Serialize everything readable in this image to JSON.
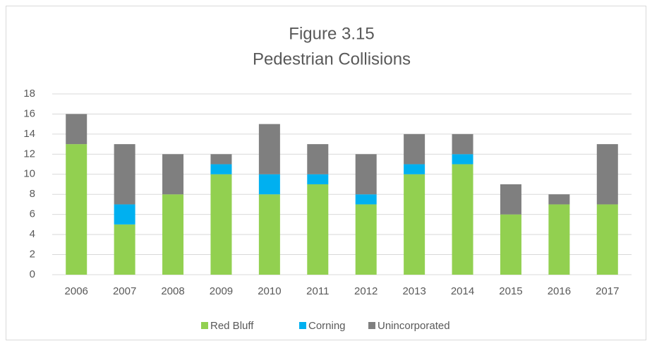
{
  "chart_data": {
    "type": "stacked_bar",
    "title": "Figure 3.15",
    "subtitle": "Pedestrian Collisions",
    "categories": [
      "2006",
      "2007",
      "2008",
      "2009",
      "2010",
      "2011",
      "2012",
      "2013",
      "2014",
      "2015",
      "2016",
      "2017"
    ],
    "series": [
      {
        "name": "Red Bluff",
        "color": "#92d050",
        "values": [
          13,
          5,
          8,
          10,
          8,
          9,
          7,
          10,
          11,
          6,
          7,
          7
        ]
      },
      {
        "name": "Corning",
        "color": "#00b0f0",
        "values": [
          0,
          2,
          0,
          1,
          2,
          1,
          1,
          1,
          1,
          0,
          0,
          0
        ]
      },
      {
        "name": "Unincorporated",
        "color": "#7f7f7f",
        "values": [
          3,
          6,
          4,
          1,
          5,
          3,
          4,
          3,
          2,
          3,
          1,
          6
        ]
      }
    ],
    "ylim": [
      0,
      18
    ],
    "yticks": [
      0,
      2,
      4,
      6,
      8,
      10,
      12,
      14,
      16,
      18
    ],
    "grid": true,
    "legend": "bottom"
  }
}
